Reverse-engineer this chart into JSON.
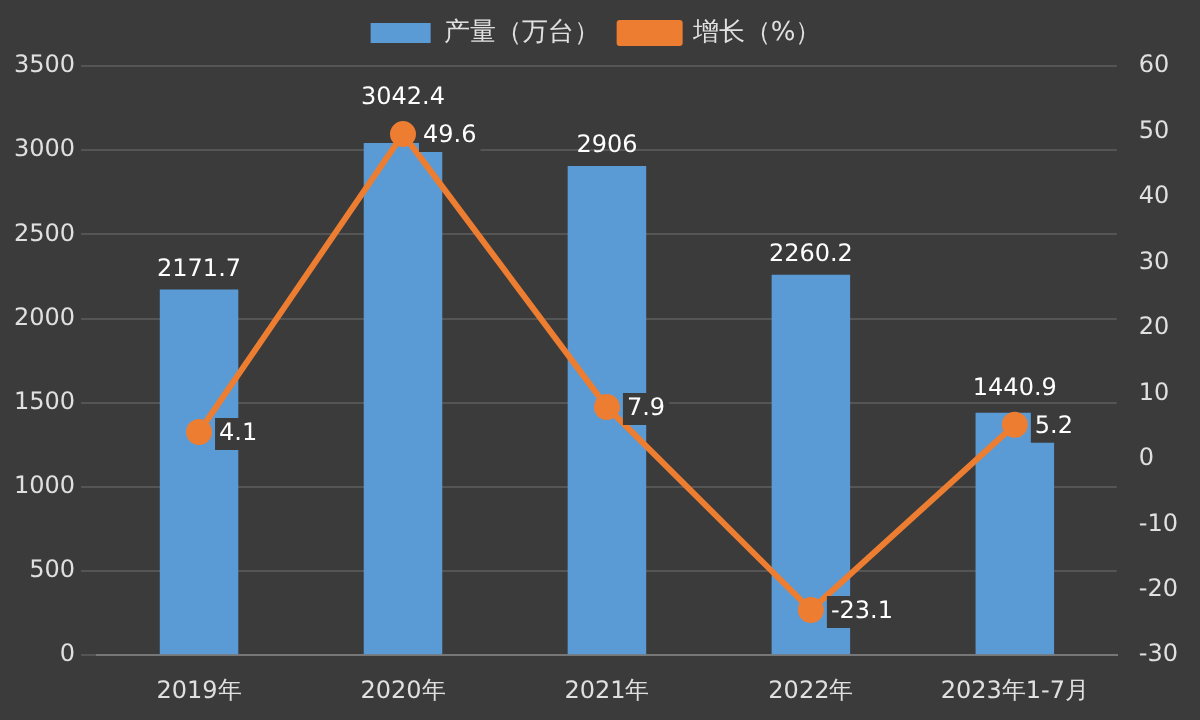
{
  "chart_data": {
    "type": "bar",
    "categories": [
      "2019年",
      "2020年",
      "2021年",
      "2022年",
      "2023年1-7月"
    ],
    "series": [
      {
        "name": "产量（万台）",
        "color": "#5b9bd5",
        "values": [
          2171.7,
          3042.4,
          2906,
          2260.2,
          1440.9
        ]
      },
      {
        "name": "增长（%）",
        "type": "line",
        "axis": "y2",
        "color": "#ed7d31",
        "values": [
          4.1,
          49.6,
          7.9,
          -23.1,
          5.2
        ]
      }
    ],
    "ylim": [
      0,
      3500
    ],
    "yticks": [
      0,
      500,
      1000,
      1500,
      2000,
      2500,
      3000,
      3500
    ],
    "y2lim": [
      -30,
      60
    ],
    "y2ticks": [
      -30,
      -20,
      -10,
      0,
      10,
      20,
      30,
      40,
      50,
      60
    ],
    "grid": "y",
    "legend": "top",
    "marker": "circle",
    "line_style": "solid",
    "data_labels": true
  }
}
